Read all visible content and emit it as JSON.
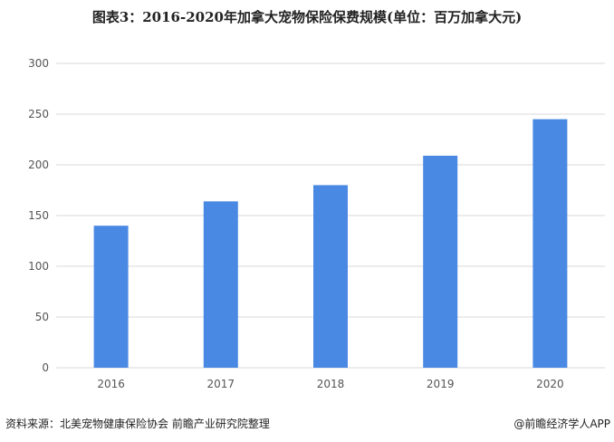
{
  "chart_data": {
    "type": "bar",
    "title": "图表3：2016-2020年加拿大宠物保险保费规模(单位：百万加拿大元)",
    "categories": [
      "2016",
      "2017",
      "2018",
      "2019",
      "2020"
    ],
    "values": [
      140,
      164,
      180,
      209,
      245
    ],
    "xlabel": "",
    "ylabel": "",
    "ylim": [
      0,
      300
    ],
    "yticks": [
      0,
      50,
      100,
      150,
      200,
      250,
      300
    ],
    "grid": true,
    "legend": "none",
    "bar_color": "#4a89e3"
  },
  "footer": {
    "source": "资料来源：北美宠物健康保险协会 前瞻产业研究院整理",
    "credit": "@前瞻经济学人APP"
  }
}
